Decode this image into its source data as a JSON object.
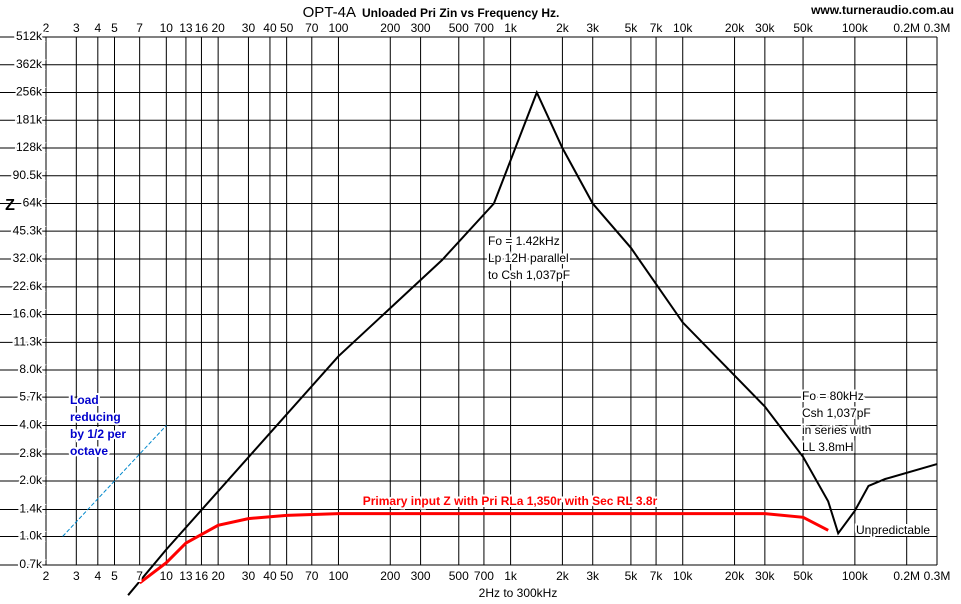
{
  "chart_data": {
    "type": "line",
    "title": "OPT-4A",
    "subtitle": "Unloaded  Pri Zin vs Frequency Hz.",
    "source": "www.turneraudio.com.au",
    "xlabel": "2Hz to 300kHz",
    "ylabel": "Z",
    "xscale": "log",
    "yscale": "log",
    "grid": true,
    "xlim": [
      2,
      300000
    ],
    "ylim": [
      700,
      512000
    ],
    "xticks": [
      2,
      3,
      4,
      5,
      7,
      10,
      13,
      16,
      20,
      30,
      40,
      50,
      70,
      100,
      200,
      300,
      500,
      700,
      {
        "value": 1000,
        "label": "1k"
      },
      {
        "value": 2000,
        "label": "2k"
      },
      {
        "value": 3000,
        "label": "3k"
      },
      {
        "value": 5000,
        "label": "5k"
      },
      {
        "value": 7000,
        "label": "7k"
      },
      {
        "value": 10000,
        "label": "10k"
      },
      {
        "value": 20000,
        "label": "20k"
      },
      {
        "value": 30000,
        "label": "30k"
      },
      {
        "value": 50000,
        "label": "50k"
      },
      {
        "value": 100000,
        "label": "100k"
      },
      {
        "value": 200000,
        "label": "0.2M"
      },
      {
        "value": 300000,
        "label": "0.3M"
      }
    ],
    "yticks": [
      {
        "value": 700,
        "label": "0.7k"
      },
      {
        "value": 1000,
        "label": "1.0k"
      },
      {
        "value": 1400,
        "label": "1.4k"
      },
      {
        "value": 2000,
        "label": "2.0k"
      },
      {
        "value": 2800,
        "label": "2.8k"
      },
      {
        "value": 4000,
        "label": "4.0k"
      },
      {
        "value": 5700,
        "label": "5.7k"
      },
      {
        "value": 8000,
        "label": "8.0k"
      },
      {
        "value": 11300,
        "label": "11.3k"
      },
      {
        "value": 16000,
        "label": "16.0k"
      },
      {
        "value": 22600,
        "label": "22.6k"
      },
      {
        "value": 32000,
        "label": "32.0k"
      },
      {
        "value": 45300,
        "label": "45.3k"
      },
      {
        "value": 64000,
        "label": "64k"
      },
      {
        "value": 90500,
        "label": "90.5k"
      },
      {
        "value": 128000,
        "label": "128k"
      },
      {
        "value": 181000,
        "label": "181k"
      },
      {
        "value": 256000,
        "label": "256k"
      },
      {
        "value": 362000,
        "label": "362k"
      },
      {
        "value": 512000,
        "label": "512k"
      }
    ],
    "series": [
      {
        "color": "#000000",
        "x": [
          6,
          10,
          100,
          400,
          800,
          1420,
          2000,
          3000,
          5000,
          10000,
          30000,
          50000,
          70000,
          80000,
          100000,
          120000,
          150000,
          300000
        ],
        "values": [
          480,
          850,
          9500,
          31600,
          64000,
          256000,
          128000,
          64000,
          36800,
          14500,
          5060,
          2700,
          1550,
          1040,
          1380,
          1880,
          2050,
          2470
        ]
      },
      {
        "name": "Primary input Z with Pri RLa 1,350r with Sec RL 3.8r",
        "color": "#ff0000",
        "x": [
          7,
          10,
          13,
          20,
          30,
          50,
          100,
          30000,
          50000,
          70000
        ],
        "values": [
          560,
          720,
          920,
          1150,
          1250,
          1300,
          1330,
          1330,
          1270,
          1080
        ]
      },
      {
        "color": "#0088cc",
        "dashed": true,
        "x": [
          2.5,
          10
        ],
        "values": [
          1000,
          4000
        ]
      }
    ],
    "annotations": [
      {
        "lines": [
          "Fo = 1.42kHz",
          "Lp 12H parallel",
          "to Csh 1,037pF"
        ],
        "color": "#000000"
      },
      {
        "lines": [
          "Fo = 80kHz",
          "Csh 1,037pF",
          "in series with",
          "LL 3.8mH"
        ],
        "color": "#000000"
      },
      {
        "lines": [
          "Load",
          "reducing",
          "by 1/2 per",
          "octave"
        ],
        "color": "#0000cc"
      },
      {
        "lines": [
          "Unpredictable"
        ],
        "color": "#000000"
      }
    ]
  }
}
